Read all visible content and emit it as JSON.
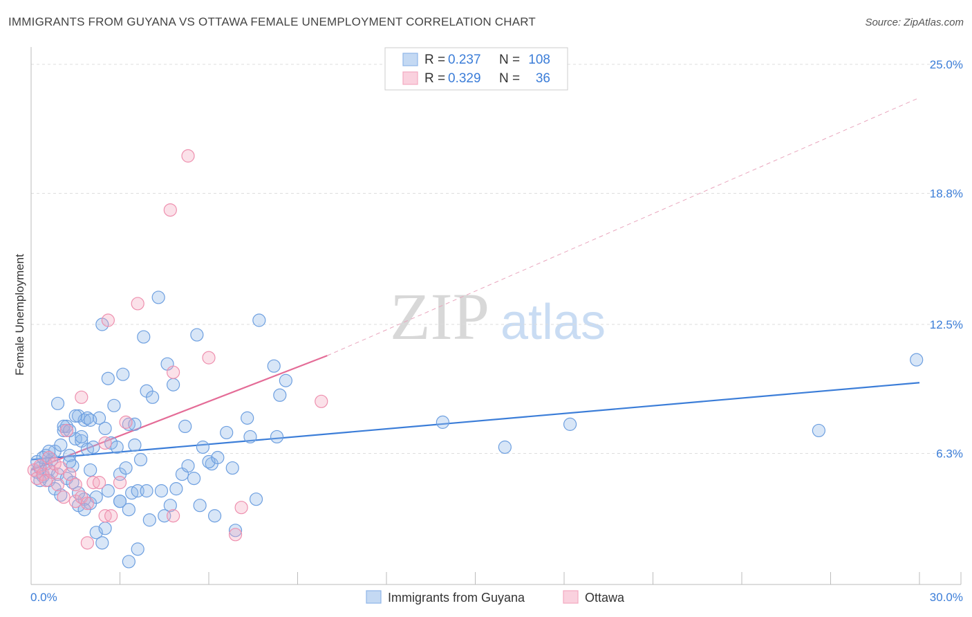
{
  "header": {
    "title": "IMMIGRANTS FROM GUYANA VS OTTAWA FEMALE UNEMPLOYMENT CORRELATION CHART",
    "source": "Source: ZipAtlas.com"
  },
  "watermark": {
    "zip": "ZIP",
    "atlas": "atlas"
  },
  "legend_box": {
    "rows": [
      {
        "r_label": "R =",
        "r_value": "0.237",
        "n_label": "N =",
        "n_value": "108",
        "color": "#8fb6e8"
      },
      {
        "r_label": "R =",
        "r_value": "0.329",
        "n_label": "N =",
        "n_value": "36",
        "color": "#f4a9c1"
      }
    ]
  },
  "bottom_legend": [
    {
      "label": "Immigrants from Guyana",
      "color": "#8fb6e8"
    },
    {
      "label": "Ottawa",
      "color": "#f4a9c1"
    }
  ],
  "chart_data": {
    "type": "scatter",
    "title": "IMMIGRANTS FROM GUYANA VS OTTAWA FEMALE UNEMPLOYMENT CORRELATION CHART",
    "xlabel": "",
    "ylabel": "Female Unemployment",
    "xlim": [
      0,
      30
    ],
    "ylim": [
      0,
      25.5
    ],
    "x_tick_labels": [
      "0.0%",
      "30.0%"
    ],
    "y_ticks": [
      6.3,
      12.5,
      18.8,
      25.0
    ],
    "y_tick_labels": [
      "6.3%",
      "12.5%",
      "18.8%",
      "25.0%"
    ],
    "grid": true,
    "colors": {
      "blue": "#3b7dd8",
      "pink": "#e46c97",
      "blue_fill": "#8fb6e8",
      "pink_fill": "#f4a9c1",
      "tick_text": "#3b7dd8"
    },
    "series": [
      {
        "name": "Immigrants from Guyana",
        "color": "blue",
        "R": 0.237,
        "N": 108,
        "trend": {
          "x": [
            0,
            30
          ],
          "y": [
            6.0,
            9.7
          ]
        },
        "points": [
          [
            0.2,
            5.4
          ],
          [
            0.3,
            5.6
          ],
          [
            0.4,
            5.2
          ],
          [
            0.5,
            5.8
          ],
          [
            0.5,
            6.2
          ],
          [
            0.6,
            5.5
          ],
          [
            0.7,
            6.0
          ],
          [
            0.8,
            6.4
          ],
          [
            0.9,
            5.3
          ],
          [
            1.0,
            6.7
          ],
          [
            1.1,
            7.4
          ],
          [
            1.2,
            7.6
          ],
          [
            1.3,
            6.2
          ],
          [
            1.4,
            5.7
          ],
          [
            1.5,
            7.0
          ],
          [
            1.6,
            8.1
          ],
          [
            1.7,
            6.9
          ],
          [
            1.8,
            7.9
          ],
          [
            1.9,
            6.5
          ],
          [
            2.0,
            5.5
          ],
          [
            0.2,
            5.9
          ],
          [
            0.4,
            6.1
          ],
          [
            0.6,
            5.0
          ],
          [
            0.8,
            4.6
          ],
          [
            1.0,
            4.3
          ],
          [
            1.2,
            5.1
          ],
          [
            1.4,
            4.9
          ],
          [
            1.6,
            3.8
          ],
          [
            1.8,
            4.1
          ],
          [
            2.0,
            3.9
          ],
          [
            0.9,
            8.7
          ],
          [
            1.1,
            7.6
          ],
          [
            1.3,
            7.4
          ],
          [
            1.5,
            8.1
          ],
          [
            1.7,
            7.1
          ],
          [
            1.9,
            8.0
          ],
          [
            2.1,
            6.6
          ],
          [
            2.3,
            8.0
          ],
          [
            2.5,
            7.5
          ],
          [
            2.7,
            6.8
          ],
          [
            2.4,
            12.5
          ],
          [
            2.6,
            9.9
          ],
          [
            2.8,
            8.6
          ],
          [
            3.1,
            10.1
          ],
          [
            3.3,
            7.7
          ],
          [
            3.5,
            6.7
          ],
          [
            3.7,
            6.0
          ],
          [
            3.9,
            9.3
          ],
          [
            4.1,
            9.0
          ],
          [
            4.3,
            13.8
          ],
          [
            3.8,
            11.9
          ],
          [
            4.6,
            10.6
          ],
          [
            4.8,
            9.6
          ],
          [
            5.2,
            7.6
          ],
          [
            5.6,
            12.0
          ],
          [
            5.8,
            6.6
          ],
          [
            6.1,
            5.8
          ],
          [
            6.6,
            7.3
          ],
          [
            7.4,
            7.1
          ],
          [
            7.3,
            8.0
          ],
          [
            7.7,
            12.7
          ],
          [
            8.2,
            10.5
          ],
          [
            8.3,
            7.1
          ],
          [
            8.4,
            9.1
          ],
          [
            8.6,
            9.8
          ],
          [
            2.2,
            2.5
          ],
          [
            2.5,
            2.7
          ],
          [
            3.0,
            4.0
          ],
          [
            3.3,
            3.6
          ],
          [
            3.0,
            5.3
          ],
          [
            3.2,
            5.6
          ],
          [
            3.4,
            4.4
          ],
          [
            3.6,
            4.5
          ],
          [
            3.9,
            4.5
          ],
          [
            4.0,
            3.1
          ],
          [
            4.4,
            4.5
          ],
          [
            4.7,
            3.8
          ],
          [
            4.9,
            4.6
          ],
          [
            5.1,
            5.3
          ],
          [
            5.3,
            5.7
          ],
          [
            5.5,
            5.1
          ],
          [
            5.7,
            3.8
          ],
          [
            6.0,
            5.9
          ],
          [
            6.2,
            3.3
          ],
          [
            6.3,
            6.1
          ],
          [
            6.8,
            5.6
          ],
          [
            6.9,
            2.6
          ],
          [
            7.6,
            4.1
          ],
          [
            3.3,
            1.1
          ],
          [
            3.6,
            1.7
          ],
          [
            2.4,
            2.0
          ],
          [
            1.6,
            4.4
          ],
          [
            1.8,
            3.6
          ],
          [
            2.2,
            4.2
          ],
          [
            2.6,
            4.5
          ],
          [
            3.0,
            4.0
          ],
          [
            2.0,
            7.9
          ],
          [
            2.9,
            6.6
          ],
          [
            3.5,
            7.7
          ],
          [
            4.5,
            3.3
          ],
          [
            13.9,
            7.8
          ],
          [
            16.0,
            6.6
          ],
          [
            18.2,
            7.7
          ],
          [
            26.6,
            7.4
          ],
          [
            29.9,
            10.8
          ],
          [
            1.3,
            5.9
          ],
          [
            0.6,
            6.4
          ],
          [
            0.3,
            5.0
          ]
        ]
      },
      {
        "name": "Ottawa",
        "color": "pink",
        "R": 0.329,
        "N": 36,
        "trend": {
          "x": [
            0,
            10.0
          ],
          "y": [
            5.5,
            11.0
          ]
        },
        "trend_extension": {
          "x": [
            10.0,
            30.0
          ],
          "y": [
            11.0,
            23.4
          ]
        },
        "points": [
          [
            0.1,
            5.5
          ],
          [
            0.2,
            5.1
          ],
          [
            0.3,
            5.7
          ],
          [
            0.4,
            5.3
          ],
          [
            0.5,
            5.0
          ],
          [
            0.6,
            6.1
          ],
          [
            0.7,
            5.4
          ],
          [
            0.8,
            5.8
          ],
          [
            0.9,
            4.8
          ],
          [
            1.0,
            5.6
          ],
          [
            1.1,
            4.2
          ],
          [
            1.3,
            5.3
          ],
          [
            1.5,
            4.0
          ],
          [
            1.7,
            4.2
          ],
          [
            1.9,
            3.9
          ],
          [
            2.1,
            4.9
          ],
          [
            2.3,
            4.9
          ],
          [
            2.5,
            3.3
          ],
          [
            2.7,
            3.3
          ],
          [
            3.0,
            4.9
          ],
          [
            3.2,
            7.8
          ],
          [
            3.6,
            13.5
          ],
          [
            4.8,
            10.2
          ],
          [
            5.3,
            20.6
          ],
          [
            4.7,
            18.0
          ],
          [
            6.0,
            10.9
          ],
          [
            9.8,
            8.8
          ],
          [
            2.6,
            12.7
          ],
          [
            1.7,
            9.0
          ],
          [
            1.2,
            7.4
          ],
          [
            2.5,
            6.8
          ],
          [
            1.9,
            2.0
          ],
          [
            4.8,
            3.3
          ],
          [
            6.9,
            2.4
          ],
          [
            7.1,
            3.7
          ],
          [
            1.5,
            4.8
          ]
        ]
      }
    ]
  }
}
